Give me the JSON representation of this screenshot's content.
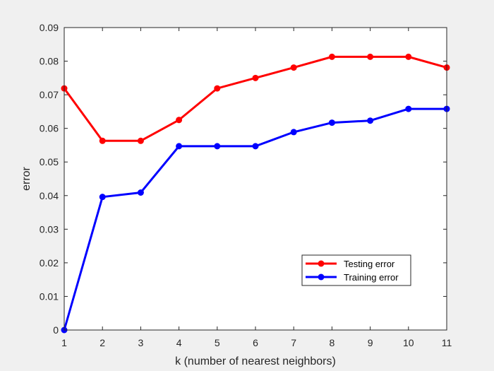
{
  "chart_data": {
    "type": "line",
    "title": "",
    "xlabel": "k (number of nearest neighbors)",
    "ylabel": "error",
    "x": [
      1,
      2,
      3,
      4,
      5,
      6,
      7,
      8,
      9,
      10,
      11
    ],
    "xlim": [
      1,
      11
    ],
    "ylim": [
      0,
      0.09
    ],
    "x_ticks": [
      "1",
      "2",
      "3",
      "4",
      "5",
      "6",
      "7",
      "8",
      "9",
      "10",
      "11"
    ],
    "y_ticks": [
      "0",
      "0.01",
      "0.02",
      "0.03",
      "0.04",
      "0.05",
      "0.06",
      "0.07",
      "0.08",
      "0.09"
    ],
    "grid": false,
    "legend_position": "lower-right",
    "series": [
      {
        "name": "Testing error",
        "color": "#ff0000",
        "marker": "circle",
        "values": [
          0.0719,
          0.0563,
          0.0563,
          0.0625,
          0.0719,
          0.075,
          0.0781,
          0.0813,
          0.0813,
          0.0813,
          0.0781
        ]
      },
      {
        "name": "Training error",
        "color": "#0000ff",
        "marker": "circle",
        "values": [
          0.0,
          0.0396,
          0.0409,
          0.0547,
          0.0547,
          0.0547,
          0.0589,
          0.0617,
          0.0623,
          0.0658,
          0.0658
        ]
      }
    ]
  }
}
